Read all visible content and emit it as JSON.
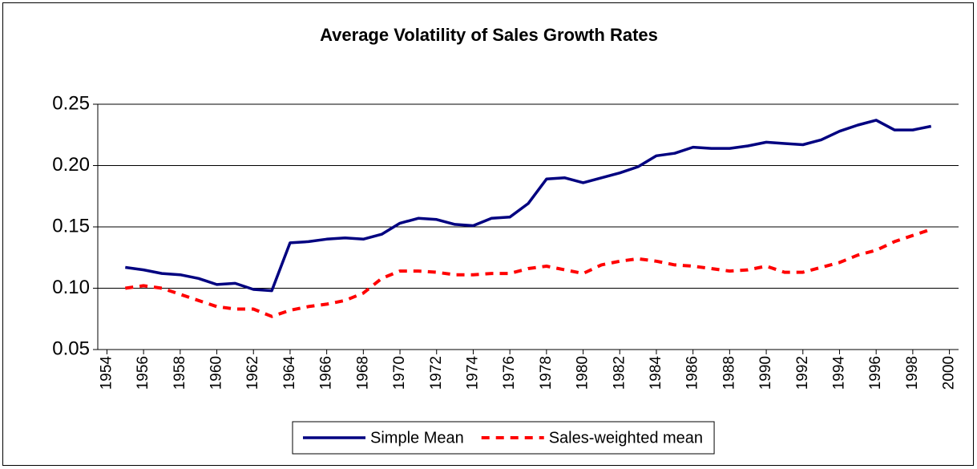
{
  "chart_data": {
    "type": "line",
    "title": "Average Volatility of Sales Growth Rates",
    "x": [
      1955,
      1956,
      1957,
      1958,
      1959,
      1960,
      1961,
      1962,
      1963,
      1964,
      1965,
      1966,
      1967,
      1968,
      1969,
      1970,
      1971,
      1972,
      1973,
      1974,
      1975,
      1976,
      1977,
      1978,
      1979,
      1980,
      1981,
      1982,
      1983,
      1984,
      1985,
      1986,
      1987,
      1988,
      1989,
      1990,
      1991,
      1992,
      1993,
      1994,
      1995,
      1996,
      1997,
      1998,
      1999
    ],
    "series": [
      {
        "name": "Simple Mean",
        "color": "#000080",
        "style": "solid",
        "values": [
          0.117,
          0.115,
          0.112,
          0.111,
          0.108,
          0.103,
          0.104,
          0.099,
          0.098,
          0.137,
          0.138,
          0.14,
          0.141,
          0.14,
          0.144,
          0.153,
          0.157,
          0.156,
          0.152,
          0.151,
          0.157,
          0.158,
          0.169,
          0.189,
          0.19,
          0.186,
          0.19,
          0.194,
          0.199,
          0.208,
          0.21,
          0.215,
          0.214,
          0.214,
          0.216,
          0.219,
          0.218,
          0.217,
          0.221,
          0.228,
          0.233,
          0.237,
          0.229,
          0.229,
          0.232
        ]
      },
      {
        "name": "Sales-weighted mean",
        "color": "#ff0000",
        "style": "dashed",
        "values": [
          0.1,
          0.102,
          0.1,
          0.095,
          0.09,
          0.085,
          0.083,
          0.083,
          0.077,
          0.082,
          0.085,
          0.087,
          0.09,
          0.096,
          0.108,
          0.114,
          0.114,
          0.113,
          0.111,
          0.111,
          0.112,
          0.112,
          0.116,
          0.118,
          0.115,
          0.112,
          0.119,
          0.122,
          0.124,
          0.122,
          0.119,
          0.118,
          0.116,
          0.114,
          0.115,
          0.118,
          0.113,
          0.113,
          0.117,
          0.121,
          0.127,
          0.131,
          0.138,
          0.143,
          0.148
        ]
      }
    ],
    "xlim": [
      1953.5,
      2000.5
    ],
    "xticks": [
      1954,
      1956,
      1958,
      1960,
      1962,
      1964,
      1966,
      1968,
      1970,
      1972,
      1974,
      1976,
      1978,
      1980,
      1982,
      1984,
      1986,
      1988,
      1990,
      1992,
      1994,
      1996,
      1998,
      2000
    ],
    "ylim": [
      0.05,
      0.25
    ],
    "yticks": [
      {
        "value": 0.25,
        "label": "0.25"
      },
      {
        "value": 0.2,
        "label": "0.20"
      },
      {
        "value": 0.15,
        "label": "0.15"
      },
      {
        "value": 0.1,
        "label": "0.10"
      },
      {
        "value": 0.05,
        "label": "0.05"
      }
    ],
    "grid": true,
    "legend": "bottom"
  }
}
